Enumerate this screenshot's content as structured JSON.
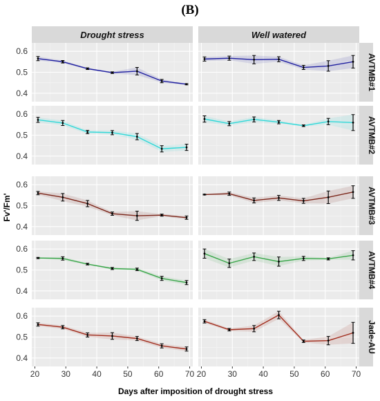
{
  "figure": {
    "panel_label": "(B)"
  },
  "chart_data": {
    "type": "line",
    "xlabel": "Days after imposition of drought stress",
    "ylabel": "Fv'/Fm'",
    "x": [
      21,
      29,
      37,
      45,
      53,
      61,
      69
    ],
    "xlim": [
      19,
      71
    ],
    "ylim": [
      0.36,
      0.64
    ],
    "xticks": [
      20,
      30,
      40,
      50,
      60,
      70
    ],
    "yticks": [
      0.4,
      0.5,
      0.6
    ],
    "grid": true,
    "columns": [
      "Drought stress",
      "Well watered"
    ],
    "panels": [
      {
        "row": "AVTMB#1",
        "color": "#1f1fa0",
        "series": [
          {
            "condition": "Drought stress",
            "values": [
              0.565,
              0.55,
              0.517,
              0.498,
              0.505,
              0.458,
              0.443
            ],
            "errors": [
              0.01,
              0.006,
              0.004,
              0.004,
              0.018,
              0.008,
              0.003
            ]
          },
          {
            "condition": "Well watered",
            "values": [
              0.563,
              0.567,
              0.56,
              0.562,
              0.523,
              0.53,
              0.55
            ],
            "errors": [
              0.01,
              0.01,
              0.02,
              0.012,
              0.01,
              0.025,
              0.03
            ]
          }
        ]
      },
      {
        "row": "AVTMB#2",
        "color": "#2ed8d8",
        "series": [
          {
            "condition": "Drought stress",
            "values": [
              0.573,
              0.558,
              0.515,
              0.512,
              0.493,
              0.435,
              0.442
            ],
            "errors": [
              0.012,
              0.012,
              0.008,
              0.01,
              0.015,
              0.015,
              0.015
            ]
          },
          {
            "condition": "Well watered",
            "values": [
              0.577,
              0.555,
              0.575,
              0.562,
              0.545,
              0.565,
              0.56
            ],
            "errors": [
              0.015,
              0.01,
              0.012,
              0.008,
              0.004,
              0.015,
              0.038
            ]
          }
        ]
      },
      {
        "row": "AVTMB#3",
        "color": "#7a2418",
        "series": [
          {
            "condition": "Drought stress",
            "values": [
              0.56,
              0.54,
              0.51,
              0.462,
              0.452,
              0.455,
              0.443
            ],
            "errors": [
              0.008,
              0.018,
              0.015,
              0.008,
              0.022,
              0.005,
              0.008
            ]
          },
          {
            "condition": "Well watered",
            "values": [
              0.553,
              0.557,
              0.525,
              0.537,
              0.523,
              0.54,
              0.565
            ],
            "errors": [
              0.002,
              0.008,
              0.012,
              0.012,
              0.012,
              0.03,
              0.03
            ]
          }
        ]
      },
      {
        "row": "AVTMB#4",
        "color": "#3aa64a",
        "series": [
          {
            "condition": "Drought stress",
            "values": [
              0.557,
              0.555,
              0.528,
              0.507,
              0.503,
              0.46,
              0.44
            ],
            "errors": [
              0.003,
              0.008,
              0.004,
              0.005,
              0.006,
              0.01,
              0.01
            ]
          },
          {
            "condition": "Well watered",
            "values": [
              0.578,
              0.532,
              0.563,
              0.54,
              0.555,
              0.553,
              0.57
            ],
            "errors": [
              0.022,
              0.02,
              0.018,
              0.022,
              0.01,
              0.005,
              0.022
            ]
          }
        ]
      },
      {
        "row": "Jade-AU",
        "color": "#a02a1a",
        "series": [
          {
            "condition": "Drought stress",
            "values": [
              0.56,
              0.547,
              0.51,
              0.505,
              0.493,
              0.458,
              0.443
            ],
            "errors": [
              0.008,
              0.008,
              0.01,
              0.016,
              0.01,
              0.01,
              0.01
            ]
          },
          {
            "condition": "Well watered",
            "values": [
              0.575,
              0.535,
              0.54,
              0.605,
              0.48,
              0.483,
              0.52
            ],
            "errors": [
              0.008,
              0.006,
              0.015,
              0.018,
              0.006,
              0.02,
              0.05
            ]
          }
        ]
      }
    ]
  }
}
